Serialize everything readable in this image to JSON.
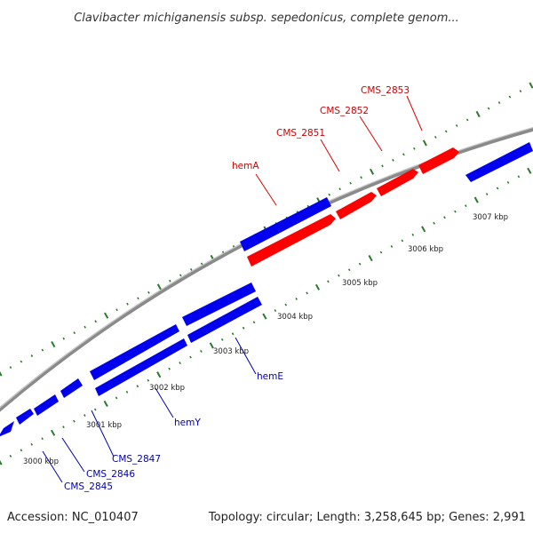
{
  "title": "Clavibacter michiganensis subsp. sepedonicus, complete genom...",
  "footer": {
    "accession": "Accession: NC_010407",
    "summary": "Topology: circular; Length: 3,258,645 bp; Genes: 2,991"
  },
  "colors": {
    "forward_gene": "#ff0000",
    "reverse_gene": "#0000ff",
    "backbone": "#8a8a8a",
    "tick": "#2a7a2a",
    "label_forward": "#cc0000",
    "label_reverse": "#0000aa"
  },
  "tick_labels": [
    "3000 kbp",
    "3001 kbp",
    "3002 kbp",
    "3003 kbp",
    "3004 kbp",
    "3005 kbp",
    "3006 kbp",
    "3007 kbp"
  ],
  "gene_labels_forward": [
    "hemA",
    "CMS_2851",
    "CMS_2852",
    "CMS_2853"
  ],
  "gene_labels_reverse": [
    "CMS_2845",
    "CMS_2846",
    "CMS_2847",
    "hemY",
    "hemE"
  ]
}
